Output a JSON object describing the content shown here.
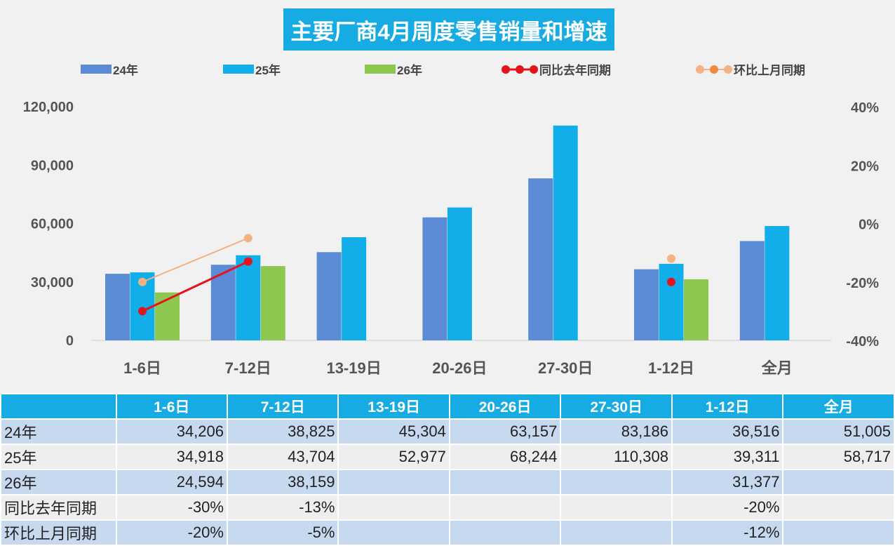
{
  "chart_data": {
    "type": "bar+line",
    "title": "主要厂商4月周度零售销量和增速",
    "categories": [
      "1-6日",
      "7-12日",
      "13-19日",
      "20-26日",
      "27-30日",
      "1-12日",
      "全月"
    ],
    "series": [
      {
        "name": "24年",
        "type": "bar",
        "axis": "left",
        "color": "#5b8bd4",
        "values": [
          34206,
          38825,
          45304,
          63157,
          83186,
          36516,
          51005
        ]
      },
      {
        "name": "25年",
        "type": "bar",
        "axis": "left",
        "color": "#12aee9",
        "values": [
          34918,
          43704,
          52977,
          68244,
          110308,
          39311,
          58717
        ]
      },
      {
        "name": "26年",
        "type": "bar",
        "axis": "left",
        "color": "#8cc850",
        "values": [
          24594,
          38159,
          null,
          null,
          null,
          31377,
          null
        ]
      },
      {
        "name": "同比去年同期",
        "type": "line",
        "axis": "right",
        "color": "#e8121c",
        "values": [
          -30,
          -13,
          null,
          null,
          null,
          -20,
          null
        ]
      },
      {
        "name": "环比上月同期",
        "type": "line",
        "axis": "right",
        "color": "#f4b183",
        "values": [
          -20,
          -5,
          null,
          null,
          null,
          -12,
          null
        ]
      }
    ],
    "y_left": {
      "range": [
        0,
        120000
      ],
      "ticks": [
        "0",
        "30,000",
        "60,000",
        "90,000",
        "120,000"
      ]
    },
    "y_right": {
      "range": [
        -40,
        40
      ],
      "ticks": [
        "-40%",
        "-20%",
        "0%",
        "20%",
        "40%"
      ]
    },
    "grid": false,
    "legend": "top"
  },
  "table": {
    "header": [
      "",
      "1-6日",
      "7-12日",
      "13-19日",
      "20-26日",
      "27-30日",
      "1-12日",
      "全月"
    ],
    "rows": [
      [
        "24年",
        "34,206",
        "38,825",
        "45,304",
        "63,157",
        "83,186",
        "36,516",
        "51,005"
      ],
      [
        "25年",
        "34,918",
        "43,704",
        "52,977",
        "68,244",
        "110,308",
        "39,311",
        "58,717"
      ],
      [
        "26年",
        "24,594",
        "38,159",
        "",
        "",
        "",
        "31,377",
        ""
      ],
      [
        "同比去年同期",
        "-30%",
        "-13%",
        "",
        "",
        "",
        "-20%",
        ""
      ],
      [
        "环比上月同期",
        "-20%",
        "-5%",
        "",
        "",
        "",
        "-12%",
        ""
      ]
    ]
  }
}
